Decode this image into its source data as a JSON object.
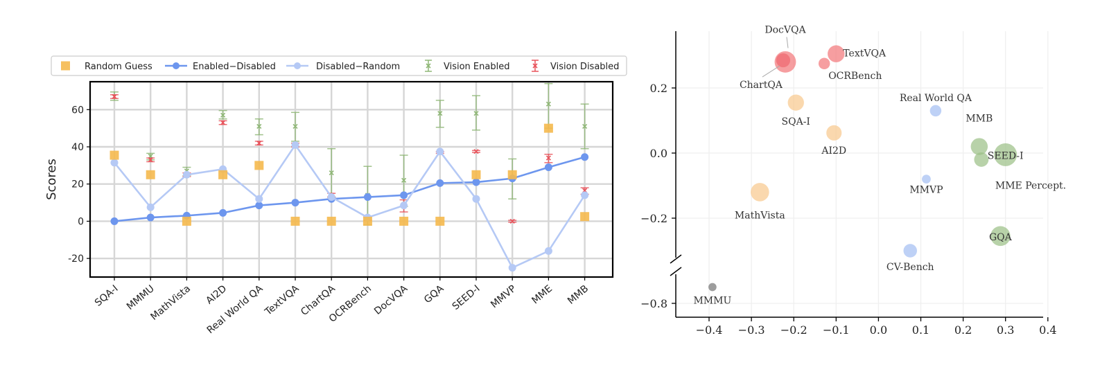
{
  "chart_data": [
    {
      "type": "line",
      "ylabel": "Scores",
      "ylim": [
        -30,
        75
      ],
      "yticks": [
        -20,
        0,
        20,
        40,
        60
      ],
      "grid": true,
      "legend_position": "top",
      "categories": [
        "SQA-I",
        "MMMU",
        "MathVista",
        "AI2D",
        "Real World QA",
        "TextVQA",
        "ChartQA",
        "OCRBench",
        "DocVQA",
        "GQA",
        "SEED-I",
        "MMVP",
        "MME",
        "MMB"
      ],
      "series": [
        {
          "name": "Random Guess",
          "kind": "marker",
          "color": "#F5B94E",
          "values": [
            35.5,
            25,
            0,
            25,
            30,
            0,
            0,
            0,
            0,
            0,
            25,
            25,
            50,
            2.5
          ]
        },
        {
          "name": "Enabled−Disabled",
          "kind": "line",
          "color": "#6D96EE",
          "values": [
            0,
            2,
            3,
            4.5,
            8.5,
            10,
            12,
            13,
            14,
            20.5,
            21,
            23,
            29,
            34.5
          ]
        },
        {
          "name": "Disabled−Random",
          "kind": "line",
          "color": "#B5C9F5",
          "values": [
            31.5,
            7.5,
            25,
            28,
            12,
            41,
            13,
            2,
            8.5,
            37.5,
            12,
            -25,
            -16,
            14
          ]
        },
        {
          "name": "Vision Enabled",
          "kind": "errorbar",
          "color": "#8FB776",
          "mean": [
            67,
            35,
            27,
            57,
            51,
            51,
            26,
            14,
            22,
            58,
            58,
            23,
            63,
            51
          ],
          "low": [
            65,
            33,
            24.5,
            55,
            46.5,
            43,
            13,
            -2,
            8,
            50.5,
            49,
            12,
            50,
            39
          ],
          "high": [
            69.5,
            36.5,
            29,
            59.5,
            55,
            58.5,
            39,
            29.5,
            35.5,
            65,
            67.5,
            33.5,
            74,
            63
          ]
        },
        {
          "name": "Vision Disabled",
          "kind": "errorbar",
          "color": "#E8535B",
          "mean": [
            67,
            33,
            25,
            53,
            42,
            41,
            14,
            1.5,
            9,
            37,
            37.5,
            0,
            34,
            16.5
          ],
          "low": [
            66,
            32,
            24,
            52,
            41,
            40,
            13,
            0.5,
            5,
            36.5,
            37,
            -0.5,
            31.5,
            14.5
          ],
          "high": [
            68,
            34,
            26,
            54,
            43,
            42,
            15,
            2.5,
            11.5,
            37.5,
            38,
            0.5,
            36,
            18
          ]
        }
      ]
    },
    {
      "type": "scatter",
      "xlim": [
        -0.45,
        0.42
      ],
      "xticks": [
        -0.4,
        -0.3,
        -0.2,
        -0.1,
        0.0,
        0.1,
        0.2,
        0.3,
        0.4
      ],
      "xtick_labels": [
        "−0.4",
        "−0.3",
        "−0.2",
        "−0.1",
        "0.0",
        "0.1",
        "0.2",
        "0.3",
        "0.4"
      ],
      "yticks": [
        0.2,
        0.0,
        -0.2,
        -0.8
      ],
      "ytick_labels": [
        "0.2",
        "0.0",
        "−0.2",
        "−0.8"
      ],
      "broken_y_axis": true,
      "grid": true,
      "points": [
        {
          "label": "DocVQA",
          "x": -0.22,
          "y": 0.28,
          "color": "#F2787C",
          "size": 3.5
        },
        {
          "label": "ChartQA",
          "x": -0.225,
          "y": 0.285,
          "color": "#EE6A70",
          "size": 1.5
        },
        {
          "label": "TextVQA",
          "x": -0.1,
          "y": 0.305,
          "color": "#F2787C",
          "size": 2.2
        },
        {
          "label": "OCRBench",
          "x": -0.128,
          "y": 0.275,
          "color": "#F2787C",
          "size": 1.0
        },
        {
          "label": "SQA-I",
          "x": -0.195,
          "y": 0.155,
          "color": "#F8C98F",
          "size": 2.0
        },
        {
          "label": "AI2D",
          "x": -0.105,
          "y": 0.062,
          "color": "#F8C98F",
          "size": 1.8
        },
        {
          "label": "MathVista",
          "x": -0.28,
          "y": -0.12,
          "color": "#F8C98F",
          "size": 2.6
        },
        {
          "label": "Real World QA",
          "x": 0.135,
          "y": 0.13,
          "color": "#A5BFF2",
          "size": 1.0
        },
        {
          "label": "MMVP",
          "x": 0.113,
          "y": -0.08,
          "color": "#A5BFF2",
          "size": 0.6
        },
        {
          "label": "CV-Bench",
          "x": 0.075,
          "y": -0.3,
          "color": "#A5BFF2",
          "size": 1.4
        },
        {
          "label": "MMB",
          "x": 0.238,
          "y": 0.02,
          "color": "#9CC088",
          "size": 2.2
        },
        {
          "label": "SEED-I",
          "x": 0.3,
          "y": -0.005,
          "color": "#9CC088",
          "size": 4.0
        },
        {
          "label": "MME Percept.",
          "x": 0.243,
          "y": -0.02,
          "color": "#9CC088",
          "size": 1.6
        },
        {
          "label": "GQA",
          "x": 0.288,
          "y": -0.255,
          "color": "#9CC088",
          "size": 3.0
        },
        {
          "label": "MMMU",
          "x": -0.392,
          "y": -0.75,
          "color": "#777777",
          "size": 0.5
        }
      ]
    }
  ]
}
